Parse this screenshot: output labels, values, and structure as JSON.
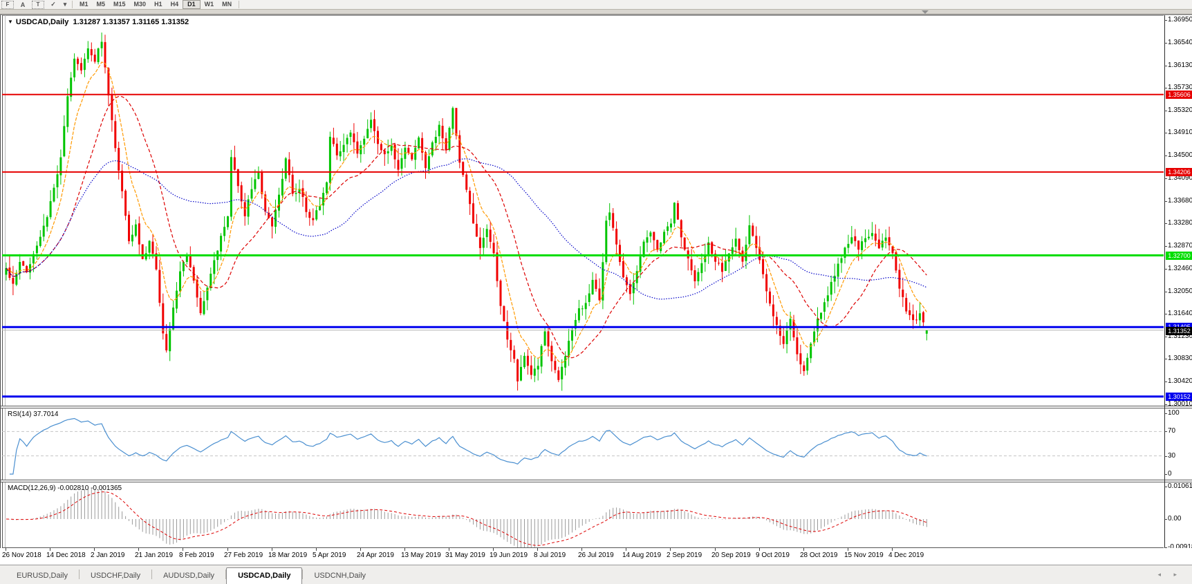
{
  "toolbar": {
    "icons": [
      {
        "name": "fibonacci-icon",
        "glyph": "F"
      },
      {
        "name": "text-tool-icon",
        "glyph": "A"
      },
      {
        "name": "label-tool-icon",
        "glyph": "T"
      },
      {
        "name": "arrow-tools-icon",
        "glyph": "✓"
      },
      {
        "name": "dropdown-arrow-icon",
        "glyph": "▾"
      }
    ],
    "timeframes": [
      "M1",
      "M5",
      "M15",
      "M30",
      "H1",
      "H4",
      "D1",
      "W1",
      "MN"
    ],
    "active_timeframe": "D1"
  },
  "chart": {
    "title_symbol": "USDCAD,Daily",
    "title_ohlc": "1.31287 1.31357 1.31165 1.31352",
    "dropdown_triangle": "▼"
  },
  "rsi": {
    "label": "RSI(14) 37.7014",
    "period": 14,
    "value": 37.7014,
    "ticks": [
      "100",
      "70",
      "30",
      "0"
    ],
    "tick_values": [
      100,
      70,
      30,
      0
    ],
    "levels": [
      70,
      30
    ]
  },
  "macd": {
    "label": "MACD(12,26,9) -0.002810 -0.001365",
    "fast": 12,
    "slow": 26,
    "signal": 9,
    "main_value": -0.00281,
    "signal_value": -0.001365,
    "ticks": [
      "0.010615",
      "0.00",
      "-0.00918"
    ],
    "tick_values": [
      0.010615,
      0.0,
      -0.00918
    ]
  },
  "price_axis": {
    "ticks": [
      "1.36950",
      "1.36540",
      "1.36130",
      "1.35730",
      "1.35320",
      "1.34910",
      "1.34500",
      "1.34090",
      "1.33680",
      "1.33280",
      "1.32870",
      "1.32460",
      "1.32050",
      "1.31640",
      "1.31230",
      "1.30830",
      "1.30420",
      "1.30010"
    ],
    "tick_values": [
      1.3695,
      1.3654,
      1.3613,
      1.3573,
      1.3532,
      1.3491,
      1.345,
      1.3409,
      1.3368,
      1.3328,
      1.3287,
      1.3246,
      1.3205,
      1.3164,
      1.3123,
      1.3083,
      1.3042,
      1.3001
    ],
    "current_price_label": "1.31352",
    "current_price": 1.31352
  },
  "dates": [
    "26 Nov 2018",
    "14 Dec 2018",
    "2 Jan 2019",
    "21 Jan 2019",
    "8 Feb 2019",
    "27 Feb 2019",
    "18 Mar 2019",
    "5 Apr 2019",
    "24 Apr 2019",
    "13 May 2019",
    "31 May 2019",
    "19 Jun 2019",
    "8 Jul 2019",
    "26 Jul 2019",
    "14 Aug 2019",
    "2 Sep 2019",
    "20 Sep 2019",
    "9 Oct 2019",
    "28 Oct 2019",
    "15 Nov 2019",
    "4 Dec 2019"
  ],
  "tabs": {
    "items": [
      "EURUSD,Daily",
      "USDCHF,Daily",
      "AUDUSD,Daily",
      "USDCAD,Daily",
      "USDCNH,Daily"
    ],
    "active": "USDCAD,Daily",
    "scroll_arrows": "◂ ▸"
  },
  "chart_data": {
    "type": "candlestick",
    "symbol": "USDCAD",
    "timeframe": "Daily",
    "x_range": [
      "26 Nov 2018",
      "4 Dec 2019"
    ],
    "price_range_visible": [
      1.29987,
      1.37025
    ],
    "candle_count": 271,
    "noise_seed": 20191220,
    "last_candle": {
      "o": 1.31287,
      "h": 1.31357,
      "l": 1.31165,
      "c": 1.31352
    },
    "anchors": [
      [
        0,
        1.3245
      ],
      [
        2,
        1.3215
      ],
      [
        4,
        1.3262
      ],
      [
        6,
        1.3238
      ],
      [
        8,
        1.3268
      ],
      [
        10,
        1.3305
      ],
      [
        12,
        1.334
      ],
      [
        14,
        1.3395
      ],
      [
        16,
        1.3445
      ],
      [
        18,
        1.3555
      ],
      [
        20,
        1.3625
      ],
      [
        22,
        1.3602
      ],
      [
        24,
        1.3645
      ],
      [
        26,
        1.3622
      ],
      [
        28,
        1.3658
      ],
      [
        30,
        1.356
      ],
      [
        32,
        1.3465
      ],
      [
        34,
        1.3385
      ],
      [
        36,
        1.3292
      ],
      [
        38,
        1.3325
      ],
      [
        40,
        1.3262
      ],
      [
        42,
        1.3292
      ],
      [
        44,
        1.3248
      ],
      [
        46,
        1.3125
      ],
      [
        47,
        1.3095
      ],
      [
        49,
        1.3172
      ],
      [
        51,
        1.3242
      ],
      [
        53,
        1.3272
      ],
      [
        55,
        1.3225
      ],
      [
        57,
        1.3165
      ],
      [
        59,
        1.3212
      ],
      [
        61,
        1.3262
      ],
      [
        63,
        1.3302
      ],
      [
        65,
        1.3345
      ],
      [
        66,
        1.3452
      ],
      [
        68,
        1.3392
      ],
      [
        70,
        1.3345
      ],
      [
        72,
        1.3392
      ],
      [
        74,
        1.3422
      ],
      [
        76,
        1.3345
      ],
      [
        78,
        1.3322
      ],
      [
        80,
        1.3382
      ],
      [
        82,
        1.3442
      ],
      [
        84,
        1.3382
      ],
      [
        86,
        1.3392
      ],
      [
        88,
        1.3352
      ],
      [
        90,
        1.3332
      ],
      [
        92,
        1.3362
      ],
      [
        94,
        1.3405
      ],
      [
        95,
        1.3482
      ],
      [
        97,
        1.3452
      ],
      [
        99,
        1.3472
      ],
      [
        101,
        1.3492
      ],
      [
        103,
        1.3452
      ],
      [
        105,
        1.3482
      ],
      [
        107,
        1.3512
      ],
      [
        109,
        1.3472
      ],
      [
        111,
        1.3452
      ],
      [
        113,
        1.3472
      ],
      [
        115,
        1.3422
      ],
      [
        117,
        1.3462
      ],
      [
        119,
        1.3442
      ],
      [
        121,
        1.3482
      ],
      [
        123,
        1.3432
      ],
      [
        125,
        1.3472
      ],
      [
        127,
        1.3502
      ],
      [
        129,
        1.3462
      ],
      [
        131,
        1.3532
      ],
      [
        133,
        1.3442
      ],
      [
        135,
        1.3392
      ],
      [
        137,
        1.3332
      ],
      [
        139,
        1.3282
      ],
      [
        141,
        1.3322
      ],
      [
        143,
        1.3272
      ],
      [
        145,
        1.3182
      ],
      [
        147,
        1.3122
      ],
      [
        149,
        1.3082
      ],
      [
        150,
        1.3042
      ],
      [
        152,
        1.3092
      ],
      [
        154,
        1.3052
      ],
      [
        156,
        1.3072
      ],
      [
        158,
        1.3132
      ],
      [
        160,
        1.3082
      ],
      [
        162,
        1.3042
      ],
      [
        164,
        1.3092
      ],
      [
        166,
        1.3132
      ],
      [
        168,
        1.3172
      ],
      [
        170,
        1.3182
      ],
      [
        172,
        1.3222
      ],
      [
        174,
        1.3192
      ],
      [
        176,
        1.3332
      ],
      [
        177,
        1.3352
      ],
      [
        179,
        1.3292
      ],
      [
        181,
        1.3232
      ],
      [
        183,
        1.3202
      ],
      [
        185,
        1.3242
      ],
      [
        187,
        1.3292
      ],
      [
        189,
        1.3312
      ],
      [
        191,
        1.3282
      ],
      [
        193,
        1.3312
      ],
      [
        195,
        1.3332
      ],
      [
        196,
        1.3362
      ],
      [
        198,
        1.3302
      ],
      [
        200,
        1.3262
      ],
      [
        202,
        1.3222
      ],
      [
        204,
        1.3252
      ],
      [
        206,
        1.3292
      ],
      [
        208,
        1.3262
      ],
      [
        210,
        1.3242
      ],
      [
        212,
        1.3272
      ],
      [
        214,
        1.3302
      ],
      [
        216,
        1.3262
      ],
      [
        218,
        1.3322
      ],
      [
        220,
        1.3282
      ],
      [
        222,
        1.3232
      ],
      [
        224,
        1.3182
      ],
      [
        226,
        1.3142
      ],
      [
        228,
        1.3112
      ],
      [
        230,
        1.3152
      ],
      [
        232,
        1.3092
      ],
      [
        234,
        1.3062
      ],
      [
        236,
        1.3112
      ],
      [
        238,
        1.3152
      ],
      [
        240,
        1.3182
      ],
      [
        242,
        1.3222
      ],
      [
        244,
        1.3252
      ],
      [
        246,
        1.3282
      ],
      [
        248,
        1.3302
      ],
      [
        250,
        1.3282
      ],
      [
        252,
        1.3302
      ],
      [
        254,
        1.3312
      ],
      [
        256,
        1.3282
      ],
      [
        258,
        1.3302
      ],
      [
        260,
        1.3272
      ],
      [
        262,
        1.3212
      ],
      [
        264,
        1.3172
      ],
      [
        266,
        1.3152
      ],
      [
        268,
        1.3162
      ],
      [
        270,
        1.31352
      ]
    ],
    "levels": [
      {
        "price": 1.35606,
        "label": "1.35606",
        "color": "#e60000",
        "width": 2
      },
      {
        "price": 1.34206,
        "label": "1.34206",
        "color": "#e60000",
        "width": 2
      },
      {
        "price": 1.327,
        "label": "1.32700",
        "color": "#00dd00",
        "width": 3
      },
      {
        "price": 1.31405,
        "label": "1.31405",
        "color": "#0000ee",
        "width": 3
      },
      {
        "price": 1.30152,
        "label": "1.30152",
        "color": "#0000ee",
        "width": 3
      }
    ],
    "moving_averages": [
      {
        "name": "fast-ma",
        "period": 8,
        "type": "ema",
        "color": "#ff9900",
        "dash": "5,2"
      },
      {
        "name": "mid-ma",
        "period": 20,
        "type": "sma",
        "color": "#dd0000",
        "dash": "5,3"
      },
      {
        "name": "slow-ma",
        "period": 55,
        "type": "sma",
        "color": "#0000c8",
        "dash": "1.5,2"
      }
    ],
    "colors": {
      "bull": "#00c400",
      "bear": "#f00000",
      "rsi_line": "#4a8fd0",
      "rsi_level": "#c4c4c4",
      "macd_hist": "#9a9a9a",
      "macd_signal": "#dd0000",
      "current_price_line": "#b0b0b0",
      "current_label_bg": "#000000"
    }
  }
}
